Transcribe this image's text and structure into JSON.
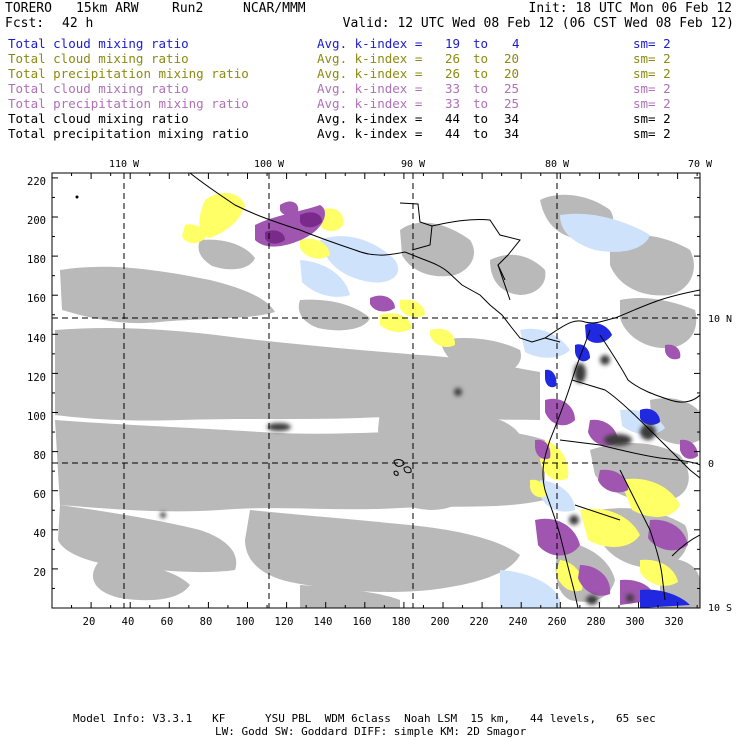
{
  "header": {
    "model_name": "TORERO",
    "resolution": "15km ARW",
    "run": "Run2",
    "org": "NCAR/MMM",
    "init": "Init: 18 UTC Mon 06 Feb 12",
    "fcst_label": "Fcst:",
    "fcst_value": "42 h",
    "valid": "Valid: 12 UTC Wed 08 Feb 12 (06 CST Wed 08 Feb 12)"
  },
  "legend": [
    {
      "field": "Total cloud mixing ratio",
      "kindex_label": "Avg. k-index =",
      "k_from": "19",
      "k_to_word": "to",
      "k_to": "4",
      "sm": "sm= 2",
      "color": "#1b1bd0"
    },
    {
      "field": "Total cloud mixing ratio",
      "kindex_label": "Avg. k-index =",
      "k_from": "26",
      "k_to_word": "to",
      "k_to": "20",
      "sm": "sm= 2",
      "color": "#8c8a12"
    },
    {
      "field": "Total precipitation mixing ratio",
      "kindex_label": "Avg. k-index =",
      "k_from": "26",
      "k_to_word": "to",
      "k_to": "20",
      "sm": "sm= 2",
      "color": "#8c8a12"
    },
    {
      "field": "Total cloud mixing ratio",
      "kindex_label": "Avg. k-index =",
      "k_from": "33",
      "k_to_word": "to",
      "k_to": "25",
      "sm": "sm= 2",
      "color": "#b070b8"
    },
    {
      "field": "Total precipitation mixing ratio",
      "kindex_label": "Avg. k-index =",
      "k_from": "33",
      "k_to_word": "to",
      "k_to": "25",
      "sm": "sm= 2",
      "color": "#b070b8"
    },
    {
      "field": "Total cloud mixing ratio",
      "kindex_label": "Avg. k-index =",
      "k_from": "44",
      "k_to_word": "to",
      "k_to": "34",
      "sm": "sm= 2",
      "color": "#000000"
    },
    {
      "field": "Total precipitation mixing ratio",
      "kindex_label": "Avg. k-index =",
      "k_from": "44",
      "k_to_word": "to",
      "k_to": "34",
      "sm": "sm= 2",
      "color": "#000000"
    }
  ],
  "map": {
    "lon_labels": [
      "110 W",
      "100 W",
      "90 W",
      "80 W",
      "70 W"
    ],
    "lat_labels": [
      "10 N",
      "0",
      "10 S"
    ],
    "y_ticks": [
      "220",
      "200",
      "180",
      "160",
      "140",
      "120",
      "100",
      "80",
      "60",
      "40",
      "20"
    ],
    "x_ticks": [
      "20",
      "40",
      "60",
      "80",
      "100",
      "120",
      "140",
      "160",
      "180",
      "200",
      "220",
      "240",
      "260",
      "280",
      "300",
      "320"
    ],
    "colors": {
      "cloud_light": "#b9b9b9",
      "cloud_dark": "#3a3a3a",
      "light_blue": "#cfe2fb",
      "blue": "#2028e0",
      "yellow": "#ffff66",
      "purple": "#a056b0",
      "dark_purple": "#7a2a8a",
      "coast": "#000000"
    }
  },
  "footer": {
    "line1": "Model Info: V3.3.1   KF      YSU PBL  WDM 6class  Noah LSM  15 km,   44 levels,   65 sec",
    "line2": "LW: Godd SW: Goddard DIFF: simple KM: 2D Smagor"
  }
}
